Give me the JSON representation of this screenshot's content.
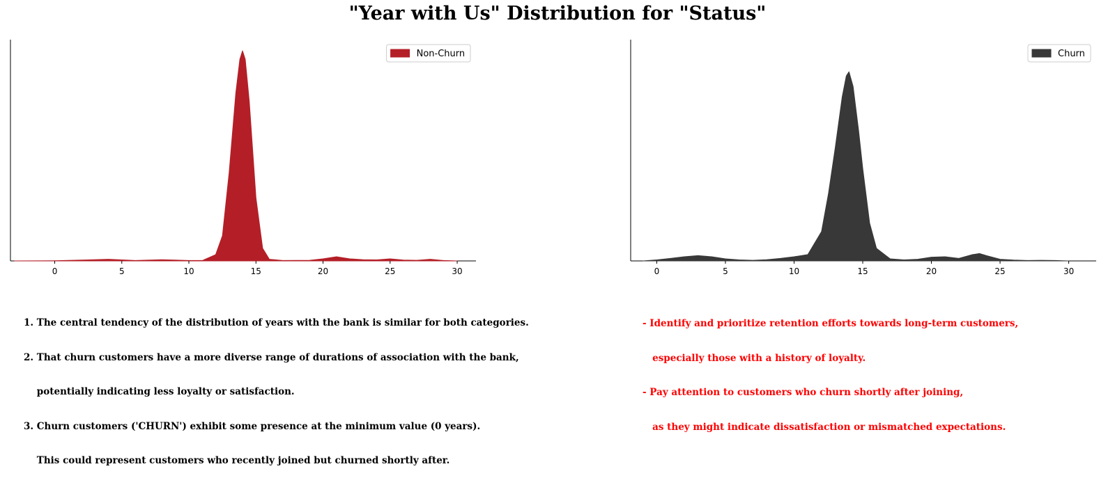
{
  "title": "\"Year with Us\" Distribution for \"Status\"",
  "chart_data": [
    {
      "type": "area",
      "subtype": "kde",
      "legend": "Non-Churn",
      "legend_position": "top-right",
      "color": "#b41f27",
      "xlim": [
        -3.3,
        31.4
      ],
      "x_ticks": [
        0,
        5,
        10,
        15,
        20,
        25,
        30
      ],
      "grid": false,
      "density_y_ticks_shown": false,
      "x": [
        -3,
        0,
        2,
        4,
        6,
        8,
        10,
        11,
        12,
        12.5,
        13,
        13.5,
        13.8,
        14,
        14.2,
        14.5,
        15,
        15.5,
        16,
        17,
        19,
        20,
        21,
        22,
        23,
        24,
        25,
        26,
        27,
        28,
        29,
        30
      ],
      "y": [
        0,
        0.001,
        0.004,
        0.008,
        0.002,
        0.006,
        0.002,
        0.002,
        0.03,
        0.12,
        0.42,
        0.8,
        0.96,
        1.0,
        0.96,
        0.76,
        0.3,
        0.06,
        0.008,
        0.002,
        0.003,
        0.01,
        0.02,
        0.01,
        0.006,
        0.005,
        0.01,
        0.004,
        0.003,
        0.008,
        0.002,
        0
      ]
    },
    {
      "type": "area",
      "subtype": "kde",
      "legend": "Churn",
      "legend_position": "top-right",
      "color": "#383838",
      "xlim": [
        -1.9,
        32.0
      ],
      "x_ticks": [
        0,
        5,
        10,
        15,
        20,
        25,
        30
      ],
      "grid": false,
      "density_y_ticks_shown": false,
      "x": [
        -1,
        0,
        1,
        2,
        3,
        4,
        5,
        6,
        7,
        8,
        9,
        10,
        11,
        12,
        12.5,
        13,
        13.5,
        13.8,
        14,
        14.3,
        14.7,
        15,
        15.5,
        16,
        17,
        18,
        19,
        20,
        21,
        22,
        23,
        23.5,
        24,
        25,
        26,
        27,
        28,
        29,
        30
      ],
      "y": [
        0,
        0.005,
        0.012,
        0.02,
        0.025,
        0.02,
        0.01,
        0.005,
        0.003,
        0.006,
        0.012,
        0.02,
        0.03,
        0.14,
        0.32,
        0.54,
        0.78,
        0.88,
        0.9,
        0.83,
        0.62,
        0.44,
        0.18,
        0.06,
        0.01,
        0.005,
        0.008,
        0.018,
        0.02,
        0.012,
        0.03,
        0.035,
        0.025,
        0.008,
        0.004,
        0.002,
        0.003,
        0.002,
        0
      ]
    }
  ],
  "notes_left": [
    "1. The central tendency of the distribution of years with the bank is similar for both categories.",
    "2. That churn customers have a more diverse range of durations of association with the bank,",
    "    potentially indicating less loyalty or satisfaction.",
    "3. Churn customers ('CHURN') exhibit some presence at the minimum value (0 years).",
    "    This could represent customers who recently joined but churned shortly after."
  ],
  "notes_right": [
    "- Identify and prioritize retention efforts towards long-term customers,",
    "   especially those with a history of loyalty.",
    "- Pay attention to customers who churn shortly after joining,",
    "   as they might indicate dissatisfaction or mismatched expectations."
  ]
}
